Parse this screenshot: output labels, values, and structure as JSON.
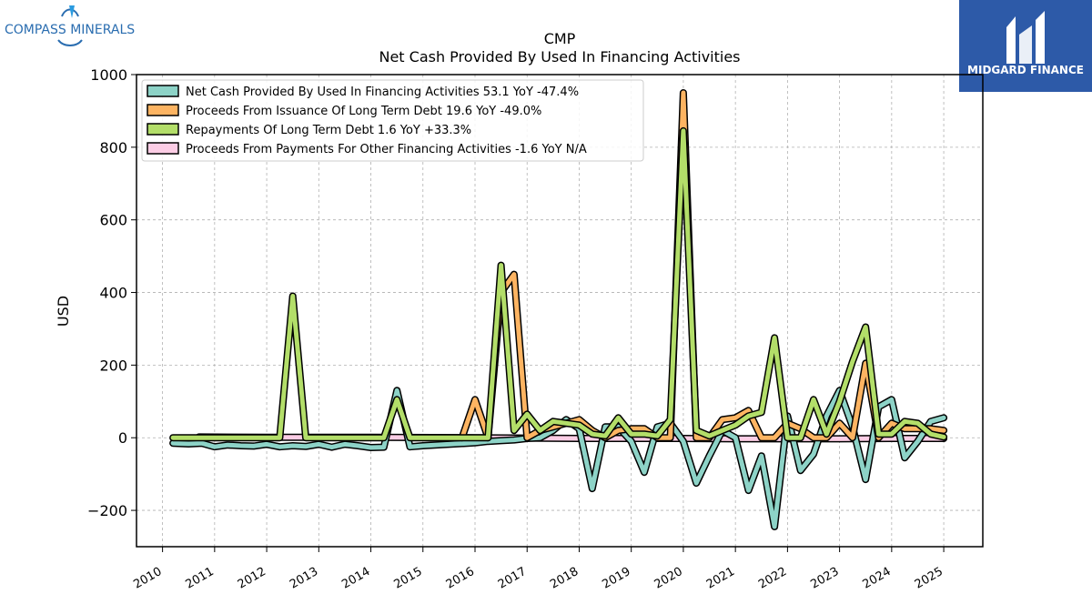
{
  "branding": {
    "left_logo_text": "COMPASS MINERALS",
    "right_logo_text": "MIDGARD FINANCE",
    "left_logo_color": "#2a6db0",
    "right_logo_bg": "#2d5aa8"
  },
  "chart_data": {
    "type": "line",
    "title": "CMP",
    "subtitle": "Net Cash Provided By Used In Financing Activities",
    "ylabel": "USD",
    "xlabel": "",
    "ylim": [
      -300,
      1000
    ],
    "xlim": [
      2009.5,
      2025.75
    ],
    "yticks": [
      -200,
      0,
      200,
      400,
      600,
      800,
      1000
    ],
    "ytick_labels": [
      "−200",
      "0",
      "200",
      "400",
      "600",
      "800",
      "1000"
    ],
    "xticks": [
      2010,
      2011,
      2012,
      2013,
      2014,
      2015,
      2016,
      2017,
      2018,
      2019,
      2020,
      2021,
      2022,
      2023,
      2024,
      2025
    ],
    "xtick_labels": [
      "2010",
      "2011",
      "2012",
      "2013",
      "2014",
      "2015",
      "2016",
      "2017",
      "2018",
      "2019",
      "2020",
      "2021",
      "2022",
      "2023",
      "2024",
      "2025"
    ],
    "grid": true,
    "legend_position": "top-left",
    "series": [
      {
        "name": "Net Cash Provided By Used In Financing Activities",
        "legend": "Net Cash Provided By Used In Financing Activities  53.1 YoY -47.4%",
        "color": "#8dd3c7",
        "points": [
          [
            2010.2,
            -15
          ],
          [
            2010.5,
            -17
          ],
          [
            2010.75,
            -15
          ],
          [
            2011.0,
            -25
          ],
          [
            2011.25,
            -20
          ],
          [
            2011.5,
            -22
          ],
          [
            2011.75,
            -23
          ],
          [
            2012.0,
            -18
          ],
          [
            2012.25,
            -25
          ],
          [
            2012.5,
            -22
          ],
          [
            2012.75,
            -24
          ],
          [
            2013.0,
            -18
          ],
          [
            2013.25,
            -26
          ],
          [
            2013.5,
            -18
          ],
          [
            2013.75,
            -22
          ],
          [
            2014.0,
            -27
          ],
          [
            2014.25,
            -26
          ],
          [
            2014.5,
            130
          ],
          [
            2014.75,
            -25
          ],
          [
            2015.0,
            -22
          ],
          [
            2015.5,
            -18
          ],
          [
            2016.0,
            -14
          ],
          [
            2016.25,
            -10
          ],
          [
            2016.5,
            -8
          ],
          [
            2016.75,
            -6
          ],
          [
            2017.0,
            -2
          ],
          [
            2017.25,
            0
          ],
          [
            2017.5,
            20
          ],
          [
            2017.75,
            50
          ],
          [
            2018.0,
            25
          ],
          [
            2018.25,
            -140
          ],
          [
            2018.5,
            30
          ],
          [
            2018.75,
            30
          ],
          [
            2019.0,
            -10
          ],
          [
            2019.25,
            -95
          ],
          [
            2019.5,
            30
          ],
          [
            2019.75,
            40
          ],
          [
            2020.0,
            -10
          ],
          [
            2020.25,
            -125
          ],
          [
            2020.5,
            -50
          ],
          [
            2020.75,
            20
          ],
          [
            2021.0,
            0
          ],
          [
            2021.25,
            -145
          ],
          [
            2021.5,
            -50
          ],
          [
            2021.75,
            -245
          ],
          [
            2022.0,
            60
          ],
          [
            2022.25,
            -90
          ],
          [
            2022.5,
            -45
          ],
          [
            2022.75,
            60
          ],
          [
            2023.0,
            130
          ],
          [
            2023.25,
            30
          ],
          [
            2023.5,
            -115
          ],
          [
            2023.75,
            85
          ],
          [
            2024.0,
            105
          ],
          [
            2024.25,
            -55
          ],
          [
            2024.5,
            -10
          ],
          [
            2024.75,
            45
          ],
          [
            2025.0,
            55
          ]
        ]
      },
      {
        "name": "Proceeds From Issuance Of Long Term Debt",
        "legend": "Proceeds From Issuance Of Long Term Debt  19.6 YoY -49.0%",
        "color": "#fdb462",
        "points": [
          [
            2015.75,
            0
          ],
          [
            2016.0,
            105
          ],
          [
            2016.25,
            0
          ],
          [
            2016.5,
            400
          ],
          [
            2016.75,
            450
          ],
          [
            2017.0,
            0
          ],
          [
            2017.25,
            20
          ],
          [
            2017.5,
            30
          ],
          [
            2017.75,
            40
          ],
          [
            2018.0,
            50
          ],
          [
            2018.25,
            20
          ],
          [
            2018.5,
            0
          ],
          [
            2018.75,
            20
          ],
          [
            2019.0,
            25
          ],
          [
            2019.25,
            25
          ],
          [
            2019.5,
            0
          ],
          [
            2019.75,
            0
          ],
          [
            2020.0,
            950
          ],
          [
            2020.25,
            0
          ],
          [
            2020.5,
            0
          ],
          [
            2020.75,
            50
          ],
          [
            2021.0,
            55
          ],
          [
            2021.25,
            75
          ],
          [
            2021.5,
            0
          ],
          [
            2021.75,
            0
          ],
          [
            2022.0,
            40
          ],
          [
            2022.25,
            25
          ],
          [
            2022.5,
            0
          ],
          [
            2022.75,
            0
          ],
          [
            2023.0,
            40
          ],
          [
            2023.25,
            0
          ],
          [
            2023.5,
            205
          ],
          [
            2023.75,
            0
          ],
          [
            2024.0,
            40
          ],
          [
            2024.25,
            25
          ],
          [
            2024.5,
            25
          ],
          [
            2024.75,
            25
          ],
          [
            2025.0,
            20
          ]
        ]
      },
      {
        "name": "Repayments Of Long Term Debt",
        "legend": "Repayments Of Long Term Debt  1.6 YoY +33.3%",
        "color": "#b3de69",
        "points": [
          [
            2010.2,
            0
          ],
          [
            2010.5,
            0
          ],
          [
            2010.75,
            0
          ],
          [
            2011.0,
            0
          ],
          [
            2011.5,
            0
          ],
          [
            2012.0,
            0
          ],
          [
            2012.25,
            0
          ],
          [
            2012.5,
            390
          ],
          [
            2012.75,
            0
          ],
          [
            2013.0,
            0
          ],
          [
            2013.5,
            0
          ],
          [
            2014.0,
            0
          ],
          [
            2014.25,
            0
          ],
          [
            2014.5,
            105
          ],
          [
            2014.75,
            0
          ],
          [
            2015.0,
            0
          ],
          [
            2015.5,
            0
          ],
          [
            2016.0,
            0
          ],
          [
            2016.25,
            0
          ],
          [
            2016.5,
            475
          ],
          [
            2016.75,
            20
          ],
          [
            2017.0,
            65
          ],
          [
            2017.25,
            20
          ],
          [
            2017.5,
            45
          ],
          [
            2017.75,
            40
          ],
          [
            2018.0,
            35
          ],
          [
            2018.25,
            10
          ],
          [
            2018.5,
            5
          ],
          [
            2018.75,
            55
          ],
          [
            2019.0,
            10
          ],
          [
            2019.25,
            10
          ],
          [
            2019.5,
            5
          ],
          [
            2019.75,
            50
          ],
          [
            2020.0,
            845
          ],
          [
            2020.25,
            20
          ],
          [
            2020.5,
            5
          ],
          [
            2020.75,
            20
          ],
          [
            2021.0,
            35
          ],
          [
            2021.25,
            60
          ],
          [
            2021.5,
            70
          ],
          [
            2021.75,
            275
          ],
          [
            2022.0,
            0
          ],
          [
            2022.25,
            0
          ],
          [
            2022.5,
            105
          ],
          [
            2022.75,
            10
          ],
          [
            2023.0,
            100
          ],
          [
            2023.25,
            210
          ],
          [
            2023.5,
            305
          ],
          [
            2023.75,
            10
          ],
          [
            2024.0,
            10
          ],
          [
            2024.25,
            45
          ],
          [
            2024.5,
            40
          ],
          [
            2024.75,
            10
          ],
          [
            2025.0,
            2
          ]
        ]
      },
      {
        "name": "Proceeds From Payments For Other Financing Activities",
        "legend": "Proceeds From Payments For Other Financing Activities  -1.6 YoY N/A",
        "color": "#fccde5",
        "points": [
          [
            2010.7,
            2
          ],
          [
            2012.0,
            1
          ],
          [
            2014.0,
            1
          ],
          [
            2016.0,
            0
          ],
          [
            2017.0,
            -1
          ],
          [
            2018.0,
            -2
          ],
          [
            2019.0,
            -2
          ],
          [
            2020.0,
            -2
          ],
          [
            2021.0,
            -3
          ],
          [
            2022.0,
            -3
          ],
          [
            2023.0,
            -3
          ],
          [
            2024.0,
            -2
          ],
          [
            2025.0,
            -2
          ]
        ]
      }
    ]
  }
}
